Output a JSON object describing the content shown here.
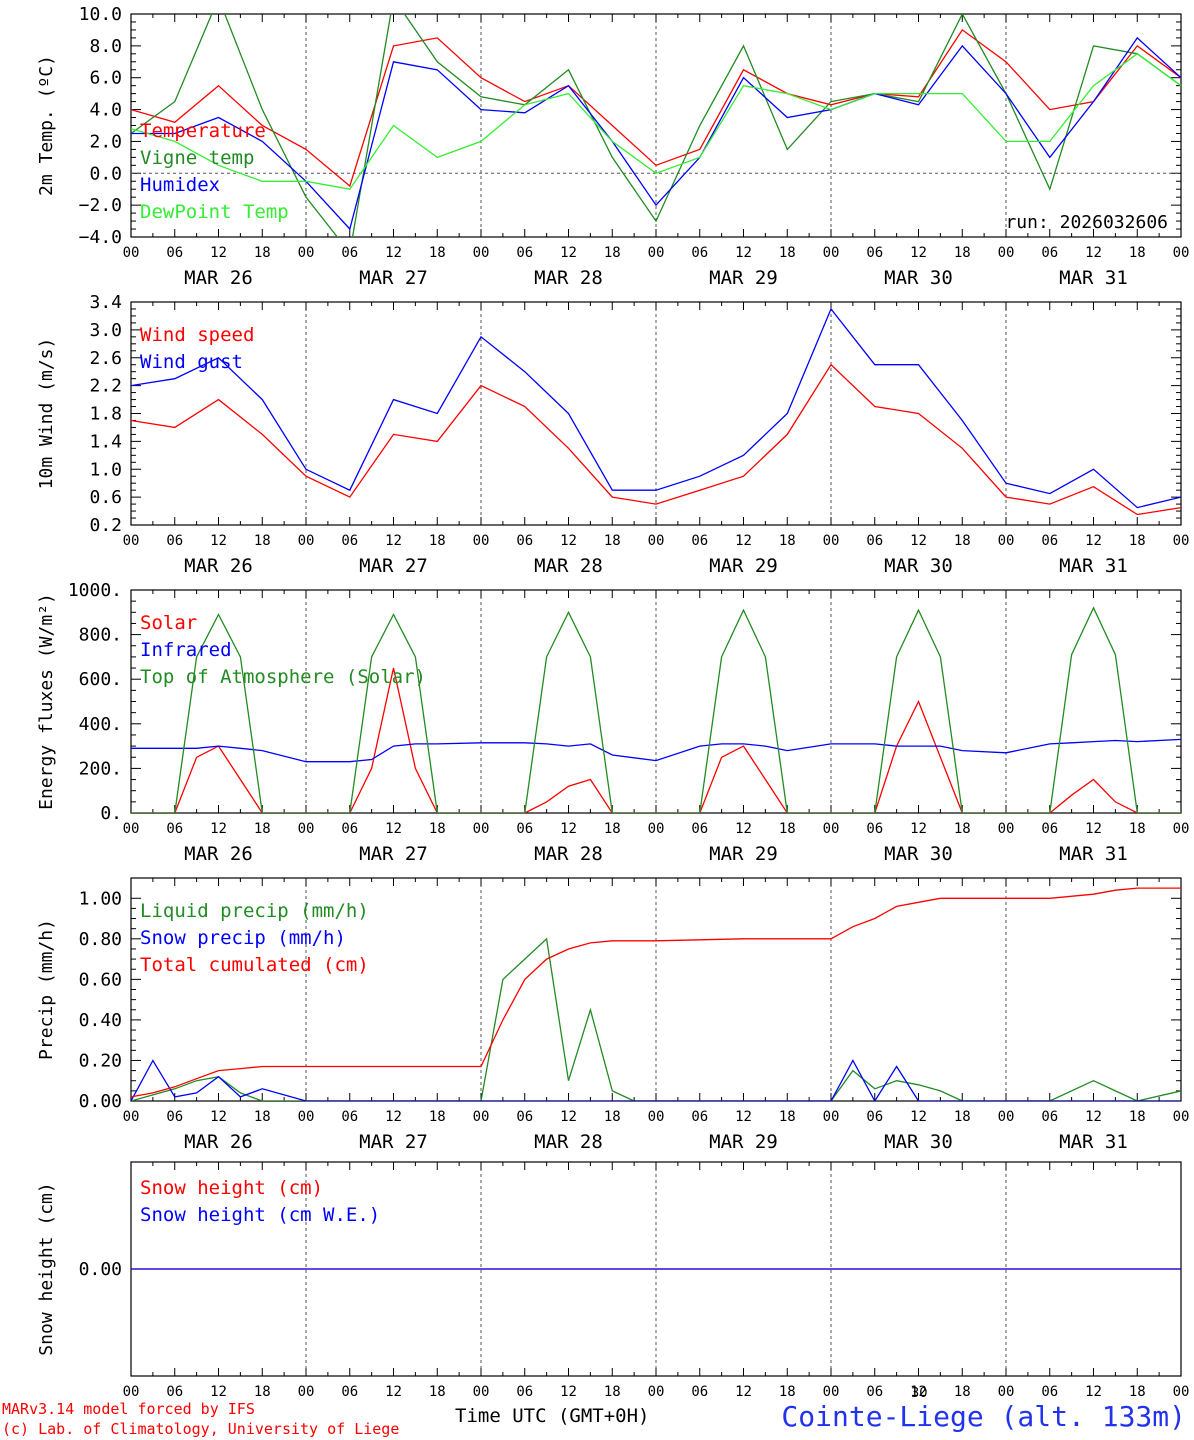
{
  "colors": {
    "red": "#ff0000",
    "dkgreen": "#228b22",
    "blue": "#0000ff",
    "ltgreen": "#33ee33",
    "axis": "#000000"
  },
  "days": [
    "MAR 26",
    "MAR 27",
    "MAR 28",
    "MAR 29",
    "MAR 30",
    "MAR 31"
  ],
  "hour_ticks": [
    "00",
    "06",
    "12",
    "18",
    "00",
    "06",
    "12",
    "18",
    "00",
    "06",
    "12",
    "18",
    "00",
    "06",
    "12",
    "18",
    "00",
    "06",
    "12",
    "18",
    "00",
    "06",
    "12",
    "18",
    "00"
  ],
  "footer": {
    "credit1": "MARv3.14 model forced by IFS",
    "credit2": "(c) Lab. of Climatology, University of Liege",
    "xtitle": "Time UTC (GMT+0H)",
    "station": "Cointe-Liege (alt. 133m)",
    "page": "30"
  },
  "chart_data": [
    {
      "type": "line",
      "id": "temp",
      "ylabel": "2m Temp. (ºC)",
      "ylim": [
        -4,
        10
      ],
      "yticks": [
        -4,
        -2,
        0,
        2,
        4,
        6,
        8,
        10
      ],
      "ytick_labels": [
        "−4.0",
        "−2.0",
        "0.0",
        "2.0",
        "4.0",
        "6.0",
        "8.0",
        "10.0"
      ],
      "zero_line": true,
      "annotation": "run: 2026032606",
      "x_hours": [
        0,
        6,
        12,
        18,
        24,
        30,
        36,
        42,
        48,
        54,
        60,
        66,
        72,
        78,
        84,
        90,
        96,
        102,
        108,
        114,
        120,
        126,
        132,
        138,
        144
      ],
      "series": [
        {
          "name": "Temperature",
          "color": "red",
          "values": [
            4.0,
            3.2,
            5.5,
            3.0,
            1.5,
            -0.8,
            8.0,
            8.5,
            6.0,
            4.5,
            5.5,
            3.0,
            0.5,
            1.5,
            6.5,
            5.0,
            4.3,
            5.0,
            4.8,
            9.0,
            7.0,
            4.0,
            4.5,
            8.0,
            6.0
          ]
        },
        {
          "name": "Vigne temp",
          "color": "dkgreen",
          "values": [
            2.5,
            4.5,
            11.0,
            4.0,
            -1.5,
            -5.0,
            11.0,
            7.0,
            4.8,
            4.3,
            6.5,
            1.0,
            -3.0,
            3.0,
            8.0,
            1.5,
            4.5,
            5.0,
            4.5,
            10.0,
            5.0,
            -1.0,
            8.0,
            7.5,
            5.5
          ]
        },
        {
          "name": "Humidex",
          "color": "blue",
          "values": [
            2.5,
            2.5,
            3.5,
            2.0,
            -0.5,
            -3.5,
            7.0,
            6.5,
            4.0,
            3.8,
            5.5,
            2.0,
            -2.0,
            1.0,
            6.0,
            3.5,
            4.0,
            5.0,
            4.3,
            8.0,
            5.0,
            1.0,
            4.5,
            8.5,
            6.0
          ]
        },
        {
          "name": "DewPoint Temp",
          "color": "ltgreen",
          "values": [
            2.8,
            2.0,
            0.5,
            -0.5,
            -0.5,
            -1.0,
            3.0,
            1.0,
            2.0,
            4.3,
            5.0,
            2.0,
            0.0,
            1.0,
            5.5,
            5.0,
            4.0,
            5.0,
            5.0,
            5.0,
            2.0,
            2.0,
            5.5,
            7.5,
            5.5
          ]
        }
      ]
    },
    {
      "type": "line",
      "id": "wind",
      "ylabel": "10m Wind (m/s)",
      "ylim": [
        0.2,
        3.4
      ],
      "yticks": [
        0.2,
        0.6,
        1.0,
        1.4,
        1.8,
        2.2,
        2.6,
        3.0,
        3.4
      ],
      "ytick_labels": [
        "0.2",
        "0.6",
        "1.0",
        "1.4",
        "1.8",
        "2.2",
        "2.6",
        "3.0",
        "3.4"
      ],
      "x_hours": [
        0,
        6,
        12,
        18,
        24,
        30,
        36,
        42,
        48,
        54,
        60,
        66,
        72,
        78,
        84,
        90,
        96,
        102,
        108,
        114,
        120,
        126,
        132,
        138,
        144
      ],
      "series": [
        {
          "name": "Wind speed",
          "color": "red",
          "values": [
            1.7,
            1.6,
            2.0,
            1.5,
            0.9,
            0.6,
            1.5,
            1.4,
            2.2,
            1.9,
            1.3,
            0.6,
            0.5,
            0.7,
            0.9,
            1.5,
            2.5,
            1.9,
            1.8,
            1.3,
            0.6,
            0.5,
            0.75,
            0.35,
            0.45
          ]
        },
        {
          "name": "Wind gust",
          "color": "blue",
          "values": [
            2.2,
            2.3,
            2.6,
            2.0,
            1.0,
            0.7,
            2.0,
            1.8,
            2.9,
            2.4,
            1.8,
            0.7,
            0.7,
            0.9,
            1.2,
            1.8,
            3.3,
            2.5,
            2.5,
            1.7,
            0.8,
            0.65,
            1.0,
            0.45,
            0.6
          ]
        }
      ]
    },
    {
      "type": "line",
      "id": "energy",
      "ylabel": "Energy fluxes (W/m²)",
      "ylim": [
        0,
        1000
      ],
      "yticks": [
        0,
        200,
        400,
        600,
        800,
        1000
      ],
      "ytick_labels": [
        "0.",
        "200.",
        "400.",
        "600.",
        "800.",
        "1000."
      ],
      "x_hours": [
        0,
        6,
        9,
        12,
        15,
        18,
        24,
        30,
        33,
        36,
        39,
        42,
        48,
        54,
        57,
        60,
        63,
        66,
        72,
        78,
        81,
        84,
        87,
        90,
        96,
        102,
        105,
        108,
        111,
        114,
        120,
        126,
        129,
        132,
        135,
        138,
        144
      ],
      "series": [
        {
          "name": "Solar",
          "color": "red",
          "values": [
            0,
            0,
            250,
            300,
            150,
            0,
            0,
            0,
            200,
            650,
            200,
            0,
            0,
            0,
            50,
            120,
            150,
            0,
            0,
            0,
            250,
            300,
            150,
            0,
            0,
            0,
            300,
            500,
            250,
            0,
            0,
            0,
            80,
            150,
            50,
            0,
            0
          ]
        },
        {
          "name": "Infrared",
          "color": "blue",
          "values": [
            290,
            290,
            290,
            300,
            290,
            280,
            230,
            230,
            240,
            300,
            310,
            310,
            315,
            315,
            310,
            300,
            310,
            260,
            235,
            300,
            310,
            310,
            300,
            280,
            310,
            310,
            300,
            300,
            300,
            280,
            270,
            310,
            315,
            320,
            325,
            320,
            330
          ]
        },
        {
          "name": "Top of Atmosphere (Solar)",
          "color": "dkgreen",
          "values": [
            0,
            0,
            700,
            890,
            700,
            0,
            0,
            0,
            700,
            890,
            700,
            0,
            0,
            0,
            700,
            900,
            700,
            0,
            0,
            0,
            700,
            910,
            700,
            0,
            0,
            0,
            700,
            910,
            700,
            0,
            0,
            0,
            710,
            920,
            710,
            0,
            0
          ]
        }
      ]
    },
    {
      "type": "line",
      "id": "precip",
      "ylabel": "Precip (mm/h)",
      "ylim": [
        0,
        1.1
      ],
      "yticks": [
        0,
        0.2,
        0.4,
        0.6,
        0.8,
        1.0
      ],
      "ytick_labels": [
        "0.00",
        "0.20",
        "0.40",
        "0.60",
        "0.80",
        "1.00"
      ],
      "x_hours": [
        0,
        3,
        6,
        9,
        12,
        15,
        18,
        24,
        48,
        51,
        54,
        57,
        60,
        63,
        66,
        69,
        72,
        84,
        96,
        99,
        102,
        105,
        108,
        111,
        114,
        120,
        126,
        132,
        135,
        138,
        144
      ],
      "series": [
        {
          "name": "Liquid precip (mm/h)",
          "color": "dkgreen",
          "values": [
            0,
            0.03,
            0.06,
            0.1,
            0.12,
            0.04,
            0,
            0,
            0,
            0.6,
            0.7,
            0.8,
            0.1,
            0.45,
            0.05,
            0,
            0,
            0,
            0,
            0.15,
            0.06,
            0.1,
            0.08,
            0.05,
            0,
            0,
            0,
            0.1,
            0.05,
            0,
            0.05
          ]
        },
        {
          "name": "Snow precip (mm/h)",
          "color": "blue",
          "values": [
            0,
            0.2,
            0.02,
            0.04,
            0.12,
            0.02,
            0.06,
            0,
            0,
            0,
            0,
            0,
            0,
            0,
            0,
            0,
            0,
            0,
            0,
            0.2,
            0,
            0.17,
            0,
            0,
            0,
            0,
            0,
            0,
            0,
            0,
            0
          ]
        },
        {
          "name": "Total cumulated (cm)",
          "color": "red",
          "values": [
            0.02,
            0.04,
            0.07,
            0.11,
            0.15,
            0.16,
            0.17,
            0.17,
            0.17,
            0.4,
            0.6,
            0.7,
            0.75,
            0.78,
            0.79,
            0.79,
            0.79,
            0.8,
            0.8,
            0.86,
            0.9,
            0.96,
            0.98,
            1.0,
            1.0,
            1.0,
            1.0,
            1.02,
            1.04,
            1.05,
            1.05
          ]
        }
      ]
    },
    {
      "type": "line",
      "id": "snow",
      "ylabel": "Snow height (cm)",
      "ylim": [
        -1,
        1
      ],
      "yticks": [
        0
      ],
      "ytick_labels": [
        "0.00"
      ],
      "x_hours": [
        0,
        144
      ],
      "series": [
        {
          "name": "Snow height (cm)",
          "color": "red",
          "values": [
            0,
            0
          ]
        },
        {
          "name": "Snow height (cm W.E.)",
          "color": "blue",
          "values": [
            0,
            0
          ]
        }
      ]
    }
  ]
}
